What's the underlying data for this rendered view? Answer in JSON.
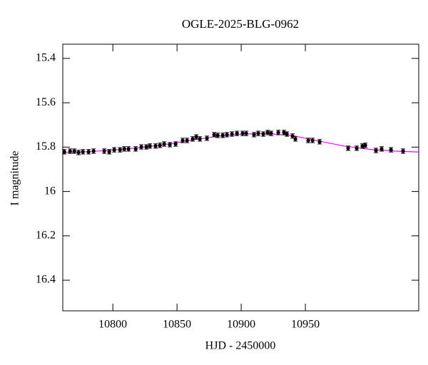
{
  "chart_data": {
    "type": "scatter",
    "title": "OGLE-2025-BLG-0962",
    "x_label": "HJD - 2450000",
    "y_label": "I magnitude",
    "xlim": [
      10761,
      11038.3
    ],
    "ylim": [
      15.336,
      16.538
    ],
    "invert_y": true,
    "xticks": [
      10800,
      10850,
      10900,
      10950
    ],
    "yticks": [
      15.4,
      15.6,
      15.8,
      16,
      16.2,
      16.4
    ],
    "points": {
      "color": "#000000",
      "x": [
        10762.2,
        10766.7,
        10770.0,
        10773.3,
        10776.7,
        10781.1,
        10785.0,
        10793.3,
        10797.2,
        10801.1,
        10805.6,
        10808.9,
        10812.2,
        10817.8,
        10822.2,
        10826.1,
        10828.9,
        10833.3,
        10836.7,
        10840.0,
        10844.4,
        10848.9,
        10854.4,
        10857.8,
        10862.2,
        10865.0,
        10867.8,
        10873.3,
        10878.9,
        10881.7,
        10885.6,
        10888.9,
        10892.8,
        10896.7,
        10901.1,
        10903.9,
        10910.0,
        10913.3,
        10917.2,
        10920.6,
        10923.3,
        10928.9,
        10933.3,
        10935.6,
        10940.0,
        10942.2,
        10952.2,
        10955.6,
        10961.1,
        10983.3,
        10990.0,
        10994.4,
        10996.7,
        11005.0,
        11009.4,
        11016.7,
        11026.1
      ],
      "values": [
        15.821,
        15.818,
        15.818,
        15.824,
        15.821,
        15.821,
        15.818,
        15.818,
        15.821,
        15.812,
        15.812,
        15.808,
        15.808,
        15.808,
        15.799,
        15.799,
        15.795,
        15.795,
        15.792,
        15.786,
        15.789,
        15.786,
        15.77,
        15.77,
        15.763,
        15.754,
        15.763,
        15.76,
        15.744,
        15.747,
        15.747,
        15.744,
        15.741,
        15.738,
        15.738,
        15.738,
        15.744,
        15.738,
        15.741,
        15.734,
        15.738,
        15.734,
        15.734,
        15.741,
        15.75,
        15.763,
        15.77,
        15.77,
        15.776,
        15.805,
        15.805,
        15.795,
        15.792,
        15.815,
        15.808,
        15.812,
        15.818
      ],
      "errors": [
        0.01,
        0.01,
        0.01,
        0.01,
        0.01,
        0.01,
        0.01,
        0.01,
        0.01,
        0.01,
        0.01,
        0.01,
        0.01,
        0.01,
        0.01,
        0.01,
        0.01,
        0.01,
        0.01,
        0.01,
        0.01,
        0.01,
        0.01,
        0.01,
        0.01,
        0.01,
        0.01,
        0.01,
        0.01,
        0.01,
        0.01,
        0.01,
        0.01,
        0.01,
        0.01,
        0.01,
        0.01,
        0.01,
        0.01,
        0.01,
        0.01,
        0.01,
        0.01,
        0.01,
        0.01,
        0.01,
        0.01,
        0.01,
        0.01,
        0.01,
        0.01,
        0.01,
        0.01,
        0.01,
        0.01,
        0.01,
        0.01
      ]
    },
    "model": {
      "color": "#ff00ff",
      "x": [
        10761,
        10780,
        10800,
        10820,
        10840,
        10860,
        10880,
        10900,
        10918,
        10940,
        10960,
        10980,
        11000,
        11020,
        11038.3
      ],
      "values": [
        15.825,
        15.821,
        15.813,
        15.803,
        15.789,
        15.77,
        15.752,
        15.742,
        15.738,
        15.748,
        15.772,
        15.795,
        15.81,
        15.818,
        15.822
      ]
    }
  }
}
